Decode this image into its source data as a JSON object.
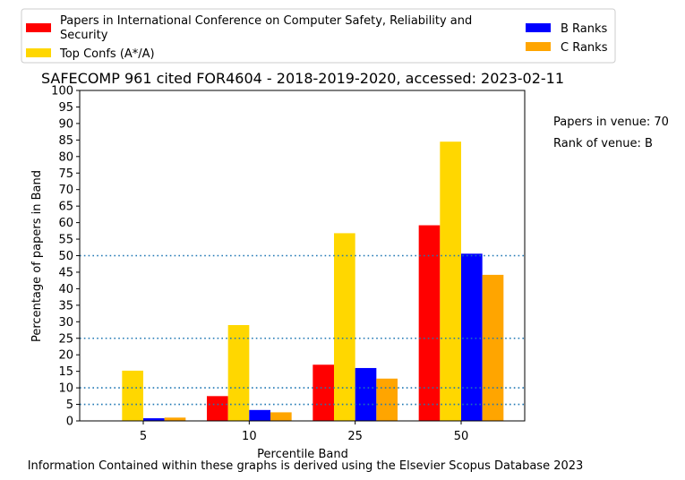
{
  "chart_data": {
    "type": "bar",
    "title": "SAFECOMP 961 cited FOR4604 - 2018-2019-2020, accessed: 2023-02-11",
    "xlabel": "Percentile Band",
    "ylabel": "Percentage of papers in Band",
    "categories": [
      "5",
      "10",
      "25",
      "50"
    ],
    "ylim": [
      0,
      100
    ],
    "yticks": [
      0,
      5,
      10,
      15,
      20,
      25,
      30,
      35,
      40,
      45,
      50,
      55,
      60,
      65,
      70,
      75,
      80,
      85,
      90,
      95,
      100
    ],
    "reference_lines": [
      5,
      10,
      25,
      50
    ],
    "series": [
      {
        "name": "Papers in International Conference on Computer Safety, Reliability and Security",
        "color": "#ff0000",
        "values": [
          0,
          7.5,
          17,
          59.2
        ]
      },
      {
        "name": "Top Confs (A*/A)",
        "color": "#ffd700",
        "values": [
          15.2,
          29,
          56.8,
          84.5
        ]
      },
      {
        "name": "B Ranks",
        "color": "#0000ff",
        "values": [
          0.8,
          3.3,
          16,
          50.6
        ]
      },
      {
        "name": "C Ranks",
        "color": "#ffa500",
        "values": [
          1,
          2.6,
          12.8,
          44.2
        ]
      }
    ],
    "legend_placement": "top",
    "grid": false
  },
  "annotations": {
    "papers_in_venue": "Papers in venue: 70",
    "rank_of_venue": "Rank of venue: B"
  },
  "footer": "Information Contained within these graphs is derived using the Elsevier Scopus Database 2023"
}
